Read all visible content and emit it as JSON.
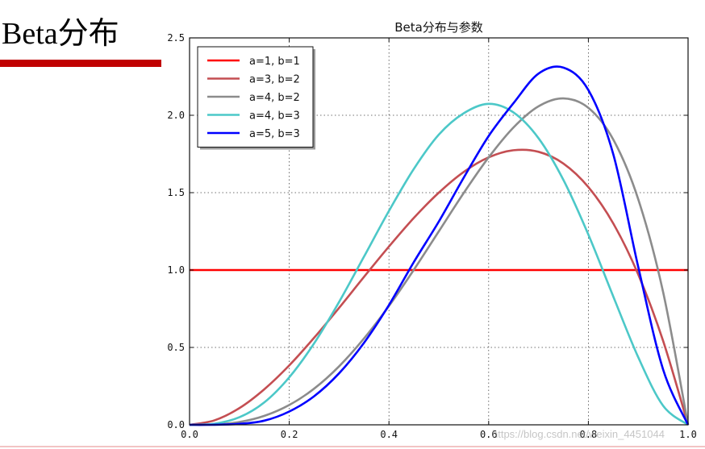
{
  "slide": {
    "title": "Beta分布",
    "watermark": "https://blog.csdn.net/weixin_4451044"
  },
  "chart_data": {
    "type": "line",
    "title": "Beta分布与参数",
    "xlabel": "",
    "ylabel": "",
    "xlim": [
      0.0,
      1.0
    ],
    "ylim": [
      0.0,
      2.5
    ],
    "x_ticks": [
      "0.0",
      "0.2",
      "0.4",
      "0.6",
      "0.8",
      "1.0"
    ],
    "y_ticks": [
      "0.0",
      "0.5",
      "1.0",
      "1.5",
      "2.0",
      "2.5"
    ],
    "grid": true,
    "legend_position": "top-left",
    "x": [
      0.0,
      0.05,
      0.1,
      0.15,
      0.2,
      0.25,
      0.3,
      0.35,
      0.4,
      0.45,
      0.5,
      0.55,
      0.6,
      0.65,
      0.7,
      0.75,
      0.8,
      0.85,
      0.9,
      0.95,
      1.0
    ],
    "series": [
      {
        "name": "a=1, b=1",
        "color": "#ff0000",
        "values": [
          1.0,
          1.0,
          1.0,
          1.0,
          1.0,
          1.0,
          1.0,
          1.0,
          1.0,
          1.0,
          1.0,
          1.0,
          1.0,
          1.0,
          1.0,
          1.0,
          1.0,
          1.0,
          1.0,
          1.0,
          1.0
        ]
      },
      {
        "name": "a=3, b=2",
        "color": "#c44e52",
        "values": [
          0.0,
          0.029,
          0.108,
          0.23,
          0.384,
          0.563,
          0.756,
          0.956,
          1.152,
          1.337,
          1.5,
          1.634,
          1.728,
          1.774,
          1.764,
          1.688,
          1.536,
          1.301,
          0.972,
          0.542,
          0.0
        ]
      },
      {
        "name": "a=4, b=2",
        "color": "#8c8c8c",
        "values": [
          0.0,
          0.002,
          0.018,
          0.058,
          0.128,
          0.234,
          0.378,
          0.558,
          0.768,
          1.002,
          1.25,
          1.498,
          1.728,
          1.922,
          2.058,
          2.109,
          2.048,
          1.843,
          1.458,
          0.857,
          0.0
        ]
      },
      {
        "name": "a=4, b=3",
        "color": "#4cc8c8",
        "values": [
          0.0,
          0.007,
          0.049,
          0.145,
          0.307,
          0.527,
          0.794,
          1.087,
          1.382,
          1.654,
          1.875,
          2.013,
          2.074,
          2.018,
          1.852,
          1.582,
          1.229,
          0.829,
          0.437,
          0.123,
          0.0
        ]
      },
      {
        "name": "a=5, b=3",
        "color": "#0000ff",
        "values": [
          0.0,
          0.0005,
          0.006,
          0.027,
          0.086,
          0.185,
          0.333,
          0.53,
          0.774,
          1.052,
          1.313,
          1.597,
          1.866,
          2.079,
          2.269,
          2.308,
          2.163,
          1.748,
          1.021,
          0.357,
          0.0
        ]
      }
    ]
  }
}
